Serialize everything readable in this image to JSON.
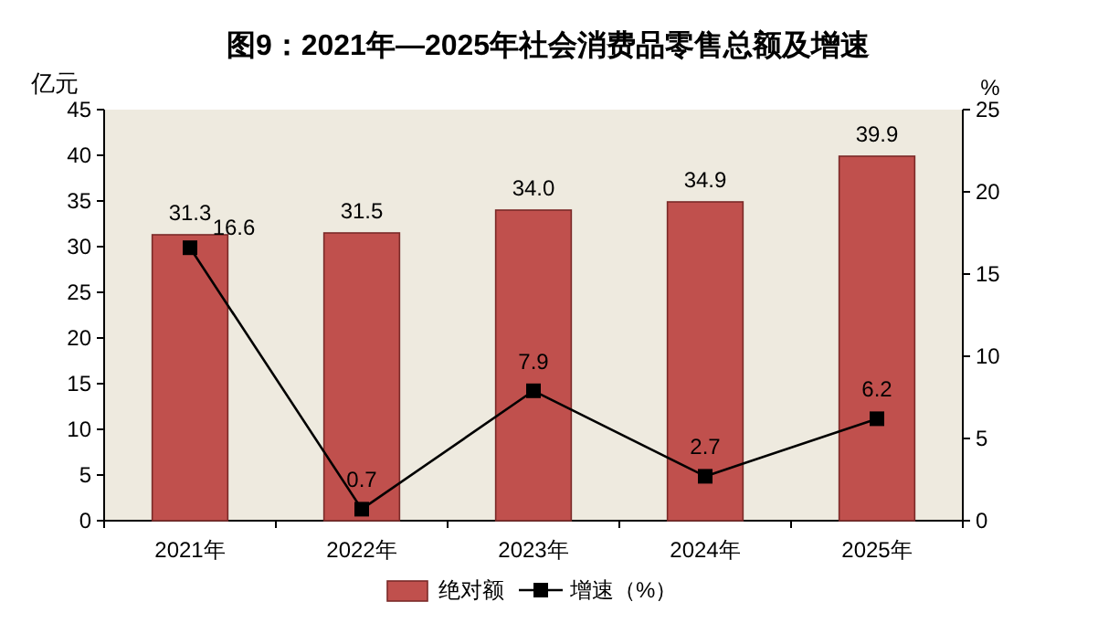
{
  "chart_data": {
    "type": "bar",
    "title": "图9：2021年—2025年社会消费品零售总额及增速",
    "ylabel": "亿元",
    "y2label": "%",
    "categories": [
      "2021年",
      "2022年",
      "2023年",
      "2024年",
      "2025年"
    ],
    "series": [
      {
        "name": "绝对额",
        "color": "#c0504d",
        "values": [
          31.3,
          31.5,
          34.0,
          34.9,
          39.9
        ],
        "value_labels": [
          "31.3",
          "31.5",
          "34.0",
          "34.9",
          "39.9"
        ]
      },
      {
        "name": "增速（%）",
        "type": "line",
        "axis": "y2",
        "color": "#000000",
        "values": [
          16.6,
          0.7,
          7.9,
          2.7,
          6.2
        ],
        "value_labels": [
          "16.6",
          "0.7",
          "7.9",
          "2.7",
          "6.2"
        ]
      }
    ],
    "ylim": [
      0,
      45
    ],
    "yticks": [
      0,
      5,
      10,
      15,
      20,
      25,
      30,
      35,
      40,
      45
    ],
    "y2lim": [
      0,
      25
    ],
    "y2ticks": [
      0,
      5,
      10,
      15,
      20,
      25
    ],
    "marker": "square",
    "line_style": "solid",
    "legend": "bottom",
    "grid": false
  }
}
